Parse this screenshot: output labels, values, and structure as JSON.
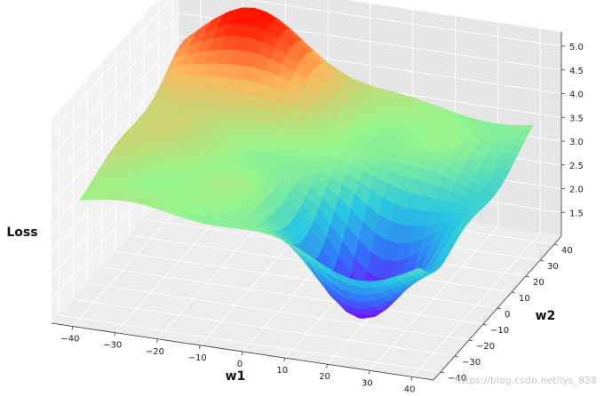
{
  "chart_data": {
    "type": "surface-3d",
    "xlabel": "w1",
    "ylabel": "w2",
    "zlabel": "Loss",
    "xlim": [
      -45,
      45
    ],
    "ylim": [
      -45,
      45
    ],
    "zlim": [
      1.0,
      5.3
    ],
    "x_ticks": [
      "−40",
      "−30",
      "−20",
      "−10",
      "0",
      "10",
      "20",
      "30",
      "40"
    ],
    "y_ticks": [
      "−40",
      "−30",
      "−20",
      "−10",
      "0",
      "10",
      "20",
      "30",
      "40"
    ],
    "z_ticks": [
      "1.5",
      "2.0",
      "2.5",
      "3.0",
      "3.5",
      "4.0",
      "4.5",
      "5.0"
    ],
    "colormap": "rainbow",
    "grid": true,
    "features": {
      "global_max": {
        "w1": -25,
        "w2": 35,
        "loss": 5.0
      },
      "global_min": {
        "w1": 20,
        "w2": -15,
        "loss": 1.2
      }
    }
  },
  "watermark": "https://blog.csdn.net/lys_828"
}
